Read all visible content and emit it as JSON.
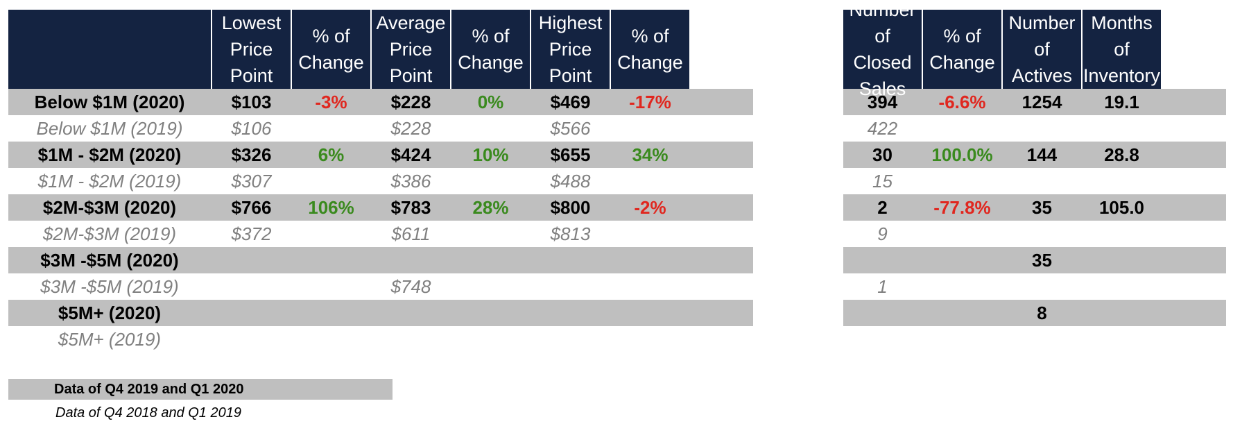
{
  "chart_data": {
    "type": "table",
    "left_table": {
      "headers": [
        "",
        "Lowest Price Point",
        "% of Change",
        "Average Price Point",
        "% of Change",
        "Highest Price Point",
        "% of Change"
      ],
      "rows": [
        {
          "label": "Below $1M (2020)",
          "period": "current",
          "cells": [
            "$103",
            "-3%",
            "$228",
            "0%",
            "$469",
            "-17%"
          ],
          "status": [
            "",
            "neg",
            "",
            "pos",
            "",
            "neg"
          ]
        },
        {
          "label": "Below $1M (2019)",
          "period": "prior",
          "cells": [
            "$106",
            "",
            "$228",
            "",
            "$566",
            ""
          ],
          "status": [
            "",
            "",
            "",
            "",
            "",
            ""
          ]
        },
        {
          "label": "$1M - $2M (2020)",
          "period": "current",
          "cells": [
            "$326",
            "6%",
            "$424",
            "10%",
            "$655",
            "34%"
          ],
          "status": [
            "",
            "pos",
            "",
            "pos",
            "",
            "pos"
          ]
        },
        {
          "label": "$1M - $2M (2019)",
          "period": "prior",
          "cells": [
            "$307",
            "",
            "$386",
            "",
            "$488",
            ""
          ],
          "status": [
            "",
            "",
            "",
            "",
            "",
            ""
          ]
        },
        {
          "label": "$2M-$3M (2020)",
          "period": "current",
          "cells": [
            "$766",
            "106%",
            "$783",
            "28%",
            "$800",
            "-2%"
          ],
          "status": [
            "",
            "pos",
            "",
            "pos",
            "",
            "neg"
          ]
        },
        {
          "label": "$2M-$3M (2019)",
          "period": "prior",
          "cells": [
            "$372",
            "",
            "$611",
            "",
            "$813",
            ""
          ],
          "status": [
            "",
            "",
            "",
            "",
            "",
            ""
          ]
        },
        {
          "label": "$3M -$5M (2020)",
          "period": "current",
          "cells": [
            "",
            "",
            "",
            "",
            "",
            ""
          ],
          "status": [
            "",
            "",
            "",
            "",
            "",
            ""
          ]
        },
        {
          "label": "$3M -$5M (2019)",
          "period": "prior",
          "cells": [
            "",
            "",
            "$748",
            "",
            "",
            ""
          ],
          "status": [
            "",
            "",
            "",
            "",
            "",
            ""
          ]
        },
        {
          "label": "$5M+ (2020)",
          "period": "current",
          "cells": [
            "",
            "",
            "",
            "",
            "",
            ""
          ],
          "status": [
            "",
            "",
            "",
            "",
            "",
            ""
          ]
        },
        {
          "label": "$5M+ (2019)",
          "period": "prior",
          "cells": [
            "",
            "",
            "",
            "",
            "",
            ""
          ],
          "status": [
            "",
            "",
            "",
            "",
            "",
            ""
          ]
        }
      ]
    },
    "right_table": {
      "headers": [
        "Number of Closed Sales",
        "% of Change",
        "Number of Actives",
        "Months of Inventory"
      ],
      "rows": [
        {
          "period": "current",
          "cells": [
            "394",
            "-6.6%",
            "1254",
            "19.1"
          ],
          "status": [
            "",
            "neg",
            "",
            ""
          ]
        },
        {
          "period": "prior",
          "cells": [
            "422",
            "",
            "",
            ""
          ],
          "status": [
            "",
            "",
            "",
            ""
          ]
        },
        {
          "period": "current",
          "cells": [
            "30",
            "100.0%",
            "144",
            "28.8"
          ],
          "status": [
            "",
            "pos",
            "",
            ""
          ]
        },
        {
          "period": "prior",
          "cells": [
            "15",
            "",
            "",
            ""
          ],
          "status": [
            "",
            "",
            "",
            ""
          ]
        },
        {
          "period": "current",
          "cells": [
            "2",
            "-77.8%",
            "35",
            "105.0"
          ],
          "status": [
            "",
            "neg",
            "",
            ""
          ]
        },
        {
          "period": "prior",
          "cells": [
            "9",
            "",
            "",
            ""
          ],
          "status": [
            "",
            "",
            "",
            ""
          ]
        },
        {
          "period": "current",
          "cells": [
            "",
            "",
            "35",
            ""
          ],
          "status": [
            "",
            "",
            "",
            ""
          ]
        },
        {
          "period": "prior",
          "cells": [
            "1",
            "",
            "",
            ""
          ],
          "status": [
            "",
            "",
            "",
            ""
          ]
        },
        {
          "period": "current",
          "cells": [
            "",
            "",
            "8",
            ""
          ],
          "status": [
            "",
            "",
            "",
            ""
          ]
        },
        {
          "period": "prior",
          "cells": [
            "",
            "",
            "",
            ""
          ],
          "status": [
            "",
            "",
            "",
            ""
          ]
        }
      ]
    },
    "legend": {
      "current": "Data of Q4 2019 and Q1 2020",
      "prior": "Data of Q4 2018 and Q1 2019"
    }
  },
  "colors": {
    "header_bg": "#142341",
    "header_text": "#ffffff",
    "shaded_row": "#bfbfbf",
    "negative": "#e0271f",
    "positive": "#3a8a1e",
    "prior_text": "#808080"
  }
}
